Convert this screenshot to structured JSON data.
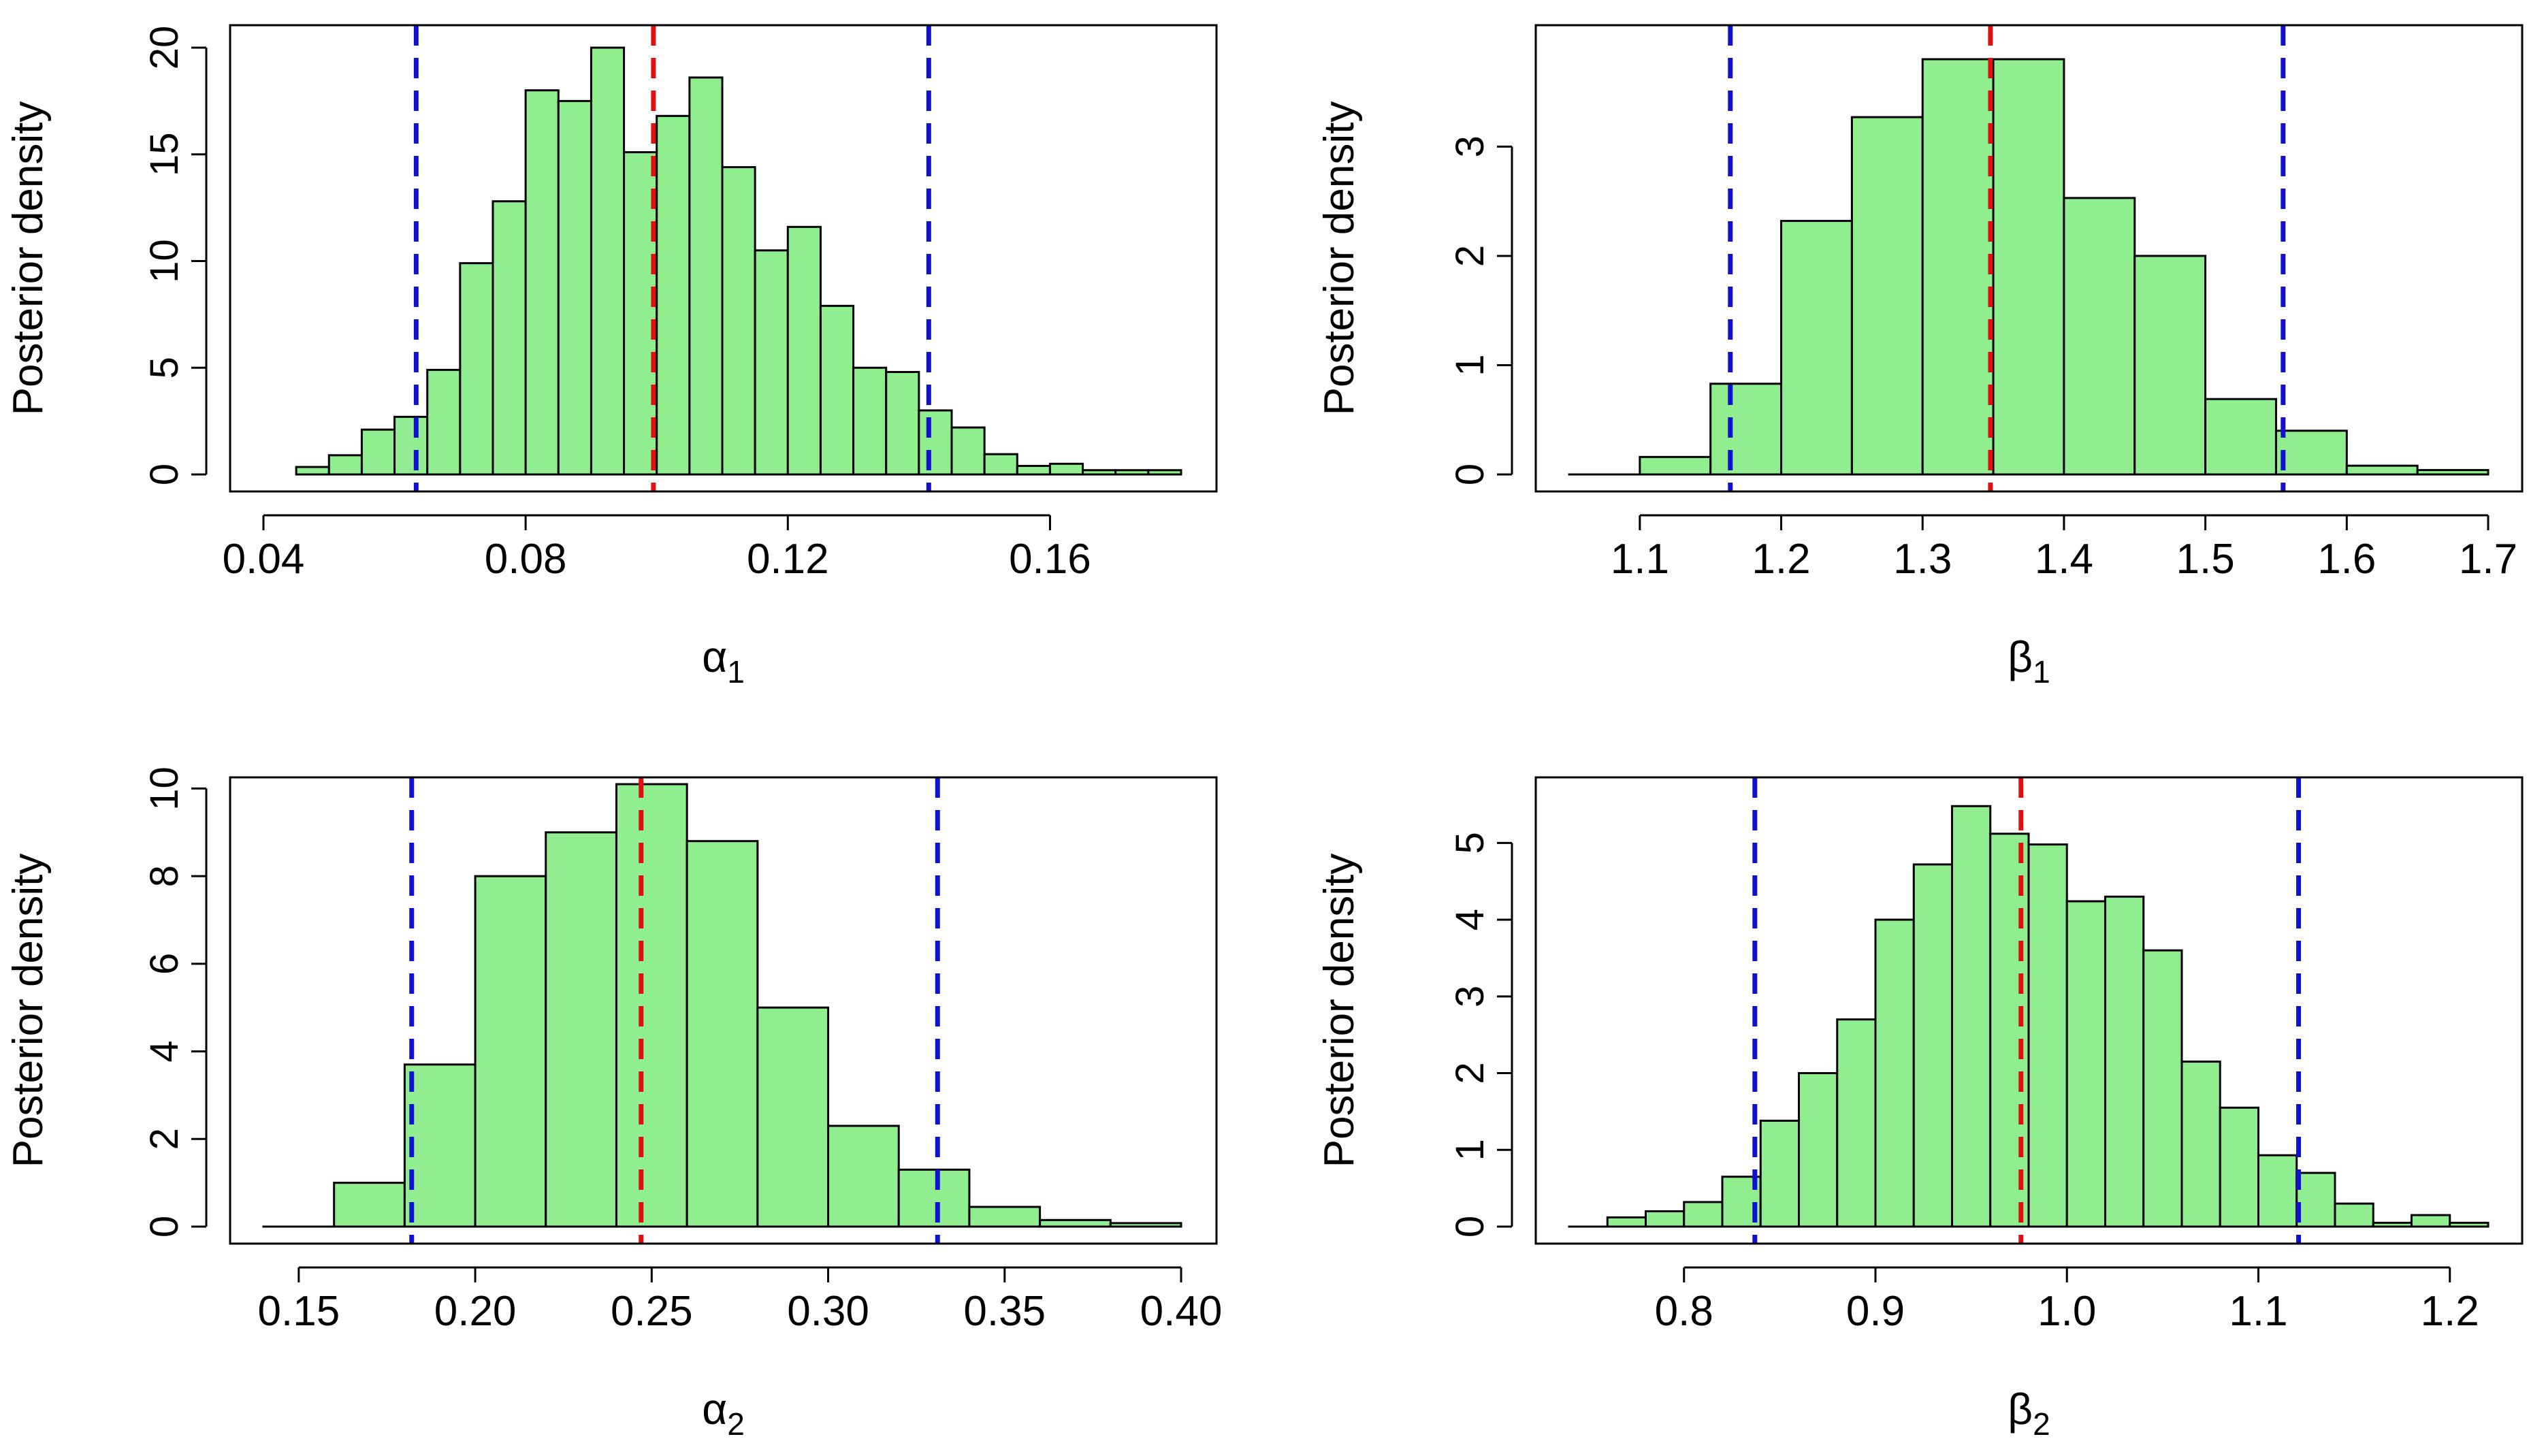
{
  "styles": {
    "bar_fill": "#90EE90",
    "bar_stroke": "#000000",
    "mean_line_color": "#E01010",
    "interval_line_color": "#1010D0"
  },
  "chart_data": [
    {
      "type": "bar",
      "xlabel_symbol": "α",
      "xlabel_sub": "1",
      "ylabel": "Posterior density",
      "xlim": [
        0.04,
        0.18
      ],
      "ylim": [
        0,
        20
      ],
      "xticks": [
        "0.04",
        "0.08",
        "0.12",
        "0.16"
      ],
      "xtick_values": [
        0.04,
        0.08,
        0.12,
        0.16
      ],
      "yticks": [
        "0",
        "5",
        "10",
        "15",
        "20"
      ],
      "ytick_values": [
        0,
        5,
        10,
        15,
        20
      ],
      "bin_start": 0.045,
      "bin_width": 0.005,
      "values": [
        0.35,
        0.9,
        2.1,
        2.7,
        4.9,
        9.9,
        12.8,
        18.0,
        17.5,
        20.0,
        15.1,
        16.8,
        18.6,
        14.4,
        10.5,
        11.6,
        7.9,
        5.0,
        4.8,
        3.0,
        2.2,
        0.95,
        0.4,
        0.5,
        0.2,
        0.2,
        0.2
      ],
      "mean": 0.0995,
      "interval": [
        0.0633,
        0.1415
      ]
    },
    {
      "type": "bar",
      "xlabel_symbol": "β",
      "xlabel_sub": "1",
      "ylabel": "Posterior density",
      "xlim": [
        1.05,
        1.7
      ],
      "ylim": [
        0,
        3.8
      ],
      "xticks": [
        "1.1",
        "1.2",
        "1.3",
        "1.4",
        "1.5",
        "1.6",
        "1.7"
      ],
      "xtick_values": [
        1.1,
        1.2,
        1.3,
        1.4,
        1.5,
        1.6,
        1.7
      ],
      "yticks": [
        "0",
        "1",
        "2",
        "3"
      ],
      "ytick_values": [
        0,
        1,
        2,
        3
      ],
      "bin_start": 1.05,
      "bin_width": 0.05,
      "values": [
        0.0,
        0.16,
        0.83,
        2.32,
        3.27,
        3.8,
        3.8,
        2.53,
        2.0,
        0.69,
        0.4,
        0.08,
        0.04
      ],
      "mean": 1.348,
      "interval": [
        1.164,
        1.555
      ]
    },
    {
      "type": "bar",
      "xlabel_symbol": "α",
      "xlabel_sub": "2",
      "ylabel": "Posterior density",
      "xlim": [
        0.14,
        0.4
      ],
      "ylim": [
        0,
        10.1
      ],
      "xticks": [
        "0.15",
        "0.20",
        "0.25",
        "0.30",
        "0.35",
        "0.40"
      ],
      "xtick_values": [
        0.15,
        0.2,
        0.25,
        0.3,
        0.35,
        0.4
      ],
      "yticks": [
        "0",
        "2",
        "4",
        "6",
        "8",
        "10"
      ],
      "ytick_values": [
        0,
        2,
        4,
        6,
        8,
        10
      ],
      "bin_start": 0.14,
      "bin_width": 0.02,
      "values": [
        0.0,
        1.0,
        3.7,
        8.0,
        9.0,
        10.1,
        8.8,
        5.0,
        2.3,
        1.3,
        0.45,
        0.15,
        0.08
      ],
      "mean": 0.247,
      "interval": [
        0.182,
        0.331
      ]
    },
    {
      "type": "bar",
      "xlabel_symbol": "β",
      "xlabel_sub": "2",
      "ylabel": "Posterior density",
      "xlim": [
        0.74,
        1.22
      ],
      "ylim": [
        0,
        5.5
      ],
      "xticks": [
        "0.8",
        "0.9",
        "1.0",
        "1.1",
        "1.2"
      ],
      "xtick_values": [
        0.8,
        0.9,
        1.0,
        1.1,
        1.2
      ],
      "yticks": [
        "0",
        "1",
        "2",
        "3",
        "4",
        "5"
      ],
      "ytick_values": [
        0,
        1,
        2,
        3,
        4,
        5
      ],
      "bin_start": 0.74,
      "bin_width": 0.02,
      "values": [
        0.0,
        0.12,
        0.2,
        0.32,
        0.65,
        1.38,
        2.0,
        2.7,
        4.0,
        4.72,
        5.48,
        5.12,
        4.98,
        4.24,
        4.3,
        3.6,
        2.15,
        1.55,
        0.93,
        0.7,
        0.3,
        0.05,
        0.15,
        0.05
      ],
      "mean": 0.976,
      "interval": [
        0.837,
        1.121
      ]
    }
  ]
}
